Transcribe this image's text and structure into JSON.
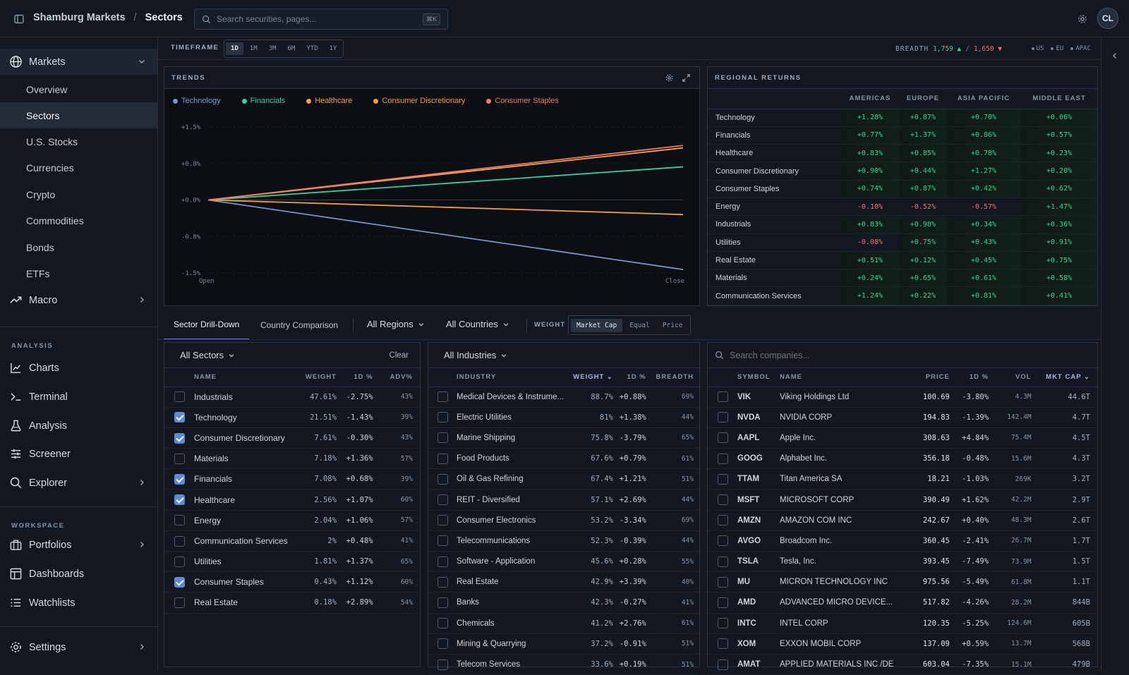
{
  "topbar": {
    "org": "Shamburg Markets",
    "sep": "/",
    "page": "Sectors",
    "search_placeholder": "Search securities, pages...",
    "shortcut": "⌘K",
    "avatar": "CL"
  },
  "sidebar": {
    "markets_label": "Markets",
    "markets_items": [
      "Overview",
      "Sectors",
      "U.S. Stocks",
      "Currencies",
      "Crypto",
      "Commodities",
      "Bonds",
      "ETFs"
    ],
    "macro_label": "Macro",
    "analysis_heading": "ANALYSIS",
    "analysis_items": [
      "Charts",
      "Terminal",
      "Analysis",
      "Screener",
      "Explorer"
    ],
    "workspace_heading": "WORKSPACE",
    "workspace_items": [
      "Portfolios",
      "Dashboards",
      "Watchlists"
    ],
    "settings_label": "Settings"
  },
  "timeframe": {
    "label": "TIMEFRAME",
    "options": [
      "1D",
      "1M",
      "3M",
      "6M",
      "YTD",
      "1Y"
    ],
    "active": "1D"
  },
  "breadth": {
    "label": "BREADTH",
    "up": "1,759 ▲",
    "sep": "/",
    "down": "1,650 ▼",
    "regions": [
      "US",
      "EU",
      "APAC"
    ]
  },
  "trends": {
    "title": "TRENDS",
    "chart_data": {
      "type": "line",
      "x": [
        "Open",
        "Close"
      ],
      "yticks": [
        "+1.5%",
        "+0.8%",
        "+0.0%",
        "-0.8%",
        "-1.5%"
      ],
      "ylim": [
        -1.5,
        1.5
      ],
      "xlabels": [
        "Open",
        "Close"
      ],
      "series": [
        {
          "name": "Technology",
          "color": "#7895c9",
          "values": [
            0,
            -1.43
          ]
        },
        {
          "name": "Financials",
          "color": "#34d399",
          "values": [
            0,
            0.68
          ]
        },
        {
          "name": "Healthcare",
          "color": "#f5a04a",
          "values": [
            0,
            1.07
          ]
        },
        {
          "name": "Consumer Discretionary",
          "color": "#f59e3c",
          "values": [
            0,
            -0.3
          ]
        },
        {
          "name": "Consumer Staples",
          "color": "#f27a6a",
          "values": [
            0,
            1.12
          ]
        }
      ]
    }
  },
  "regional": {
    "title": "REGIONAL RETURNS",
    "columns": [
      "AMERICAS",
      "EUROPE",
      "ASIA PACIFIC",
      "MIDDLE EAST"
    ],
    "rows": [
      {
        "name": "Technology",
        "v": [
          "+1.28%",
          "+0.87%",
          "+0.70%",
          "+0.06%"
        ]
      },
      {
        "name": "Financials",
        "v": [
          "+0.77%",
          "+1.37%",
          "+0.86%",
          "+0.57%"
        ]
      },
      {
        "name": "Healthcare",
        "v": [
          "+0.83%",
          "+0.85%",
          "+0.78%",
          "+0.23%"
        ]
      },
      {
        "name": "Consumer Discretionary",
        "v": [
          "+0.90%",
          "+0.44%",
          "+1.27%",
          "+0.20%"
        ]
      },
      {
        "name": "Consumer Staples",
        "v": [
          "+0.74%",
          "+0.87%",
          "+0.42%",
          "+0.62%"
        ]
      },
      {
        "name": "Energy",
        "v": [
          "-0.10%",
          "-0.52%",
          "-0.57%",
          "+1.47%"
        ]
      },
      {
        "name": "Industrials",
        "v": [
          "+0.83%",
          "+0.98%",
          "+0.34%",
          "+0.36%"
        ]
      },
      {
        "name": "Utilities",
        "v": [
          "-0.08%",
          "+0.75%",
          "+0.43%",
          "+0.91%"
        ]
      },
      {
        "name": "Real Estate",
        "v": [
          "+0.51%",
          "+0.12%",
          "+0.45%",
          "+0.75%"
        ]
      },
      {
        "name": "Materials",
        "v": [
          "+0.24%",
          "+0.65%",
          "+0.61%",
          "+0.58%"
        ]
      },
      {
        "name": "Communication Services",
        "v": [
          "+1.24%",
          "+0.22%",
          "+0.81%",
          "+0.41%"
        ]
      }
    ]
  },
  "tabs": {
    "drill": "Sector Drill-Down",
    "compare": "Country Comparison",
    "regions": "All Regions",
    "countries": "All Countries",
    "weight_label": "WEIGHT",
    "weight_options": [
      "Market Cap",
      "Equal",
      "Price"
    ]
  },
  "sectors": {
    "filter": "All Sectors",
    "clear": "Clear",
    "columns": [
      "NAME",
      "WEIGHT",
      "1D %",
      "ADV%"
    ],
    "rows": [
      {
        "name": "Industrials",
        "weight": "47.61%",
        "d1": "-2.75%",
        "adv": "43%",
        "checked": false
      },
      {
        "name": "Technology",
        "weight": "21.51%",
        "d1": "-1.43%",
        "adv": "39%",
        "checked": true
      },
      {
        "name": "Consumer Discretionary",
        "weight": "7.61%",
        "d1": "-0.30%",
        "adv": "43%",
        "checked": true
      },
      {
        "name": "Materials",
        "weight": "7.18%",
        "d1": "+1.36%",
        "adv": "57%",
        "checked": false
      },
      {
        "name": "Financials",
        "weight": "7.08%",
        "d1": "+0.68%",
        "adv": "39%",
        "checked": true
      },
      {
        "name": "Healthcare",
        "weight": "2.56%",
        "d1": "+1.07%",
        "adv": "60%",
        "checked": true
      },
      {
        "name": "Energy",
        "weight": "2.04%",
        "d1": "+1.06%",
        "adv": "57%",
        "checked": false
      },
      {
        "name": "Communication Services",
        "weight": "2%",
        "d1": "+0.48%",
        "adv": "41%",
        "checked": false
      },
      {
        "name": "Utilities",
        "weight": "1.81%",
        "d1": "+1.37%",
        "adv": "65%",
        "checked": false
      },
      {
        "name": "Consumer Staples",
        "weight": "0.43%",
        "d1": "+1.12%",
        "adv": "60%",
        "checked": true
      },
      {
        "name": "Real Estate",
        "weight": "0.18%",
        "d1": "+2.89%",
        "adv": "54%",
        "checked": false
      }
    ]
  },
  "industries": {
    "filter": "All Industries",
    "columns": [
      "INDUSTRY",
      "WEIGHT",
      "1D %",
      "BREADTH"
    ],
    "rows": [
      {
        "name": "Medical Devices & Instrume...",
        "weight": "88.7%",
        "d1": "+0.88%",
        "b": "69%"
      },
      {
        "name": "Electric Utilities",
        "weight": "81%",
        "d1": "+1.38%",
        "b": "44%"
      },
      {
        "name": "Marine Shipping",
        "weight": "75.8%",
        "d1": "-3.79%",
        "b": "65%"
      },
      {
        "name": "Food Products",
        "weight": "67.6%",
        "d1": "+0.79%",
        "b": "61%"
      },
      {
        "name": "Oil & Gas Refining",
        "weight": "67.4%",
        "d1": "+1.21%",
        "b": "51%"
      },
      {
        "name": "REIT - Diversified",
        "weight": "57.1%",
        "d1": "+2.69%",
        "b": "44%"
      },
      {
        "name": "Consumer Electronics",
        "weight": "53.2%",
        "d1": "-3.34%",
        "b": "69%"
      },
      {
        "name": "Telecommunications",
        "weight": "52.3%",
        "d1": "-0.39%",
        "b": "44%"
      },
      {
        "name": "Software - Application",
        "weight": "45.6%",
        "d1": "+0.28%",
        "b": "55%"
      },
      {
        "name": "Real Estate",
        "weight": "42.9%",
        "d1": "+3.39%",
        "b": "40%"
      },
      {
        "name": "Banks",
        "weight": "42.3%",
        "d1": "-0.27%",
        "b": "41%"
      },
      {
        "name": "Chemicals",
        "weight": "41.2%",
        "d1": "+2.76%",
        "b": "61%"
      },
      {
        "name": "Mining & Quarrying",
        "weight": "37.2%",
        "d1": "-0.91%",
        "b": "51%"
      },
      {
        "name": "Telecom Services",
        "weight": "33.6%",
        "d1": "+0.19%",
        "b": "51%"
      }
    ]
  },
  "companies": {
    "search_placeholder": "Search companies...",
    "columns": [
      "SYMBOL",
      "NAME",
      "PRICE",
      "1D %",
      "VOL",
      "MKT CAP"
    ],
    "rows": [
      {
        "sym": "VIK",
        "name": "Viking Holdings Ltd",
        "price": "100.69",
        "d1": "-3.80%",
        "vol": "4.3M",
        "cap": "44.6T"
      },
      {
        "sym": "NVDA",
        "name": "NVIDIA CORP",
        "price": "194.83",
        "d1": "-1.39%",
        "vol": "142.4M",
        "cap": "4.7T"
      },
      {
        "sym": "AAPL",
        "name": "Apple Inc.",
        "price": "308.63",
        "d1": "+4.84%",
        "vol": "75.4M",
        "cap": "4.5T"
      },
      {
        "sym": "GOOG",
        "name": "Alphabet Inc.",
        "price": "356.18",
        "d1": "-0.48%",
        "vol": "15.6M",
        "cap": "4.3T"
      },
      {
        "sym": "TTAM",
        "name": "Titan America SA",
        "price": "18.21",
        "d1": "-1.03%",
        "vol": "269K",
        "cap": "3.2T"
      },
      {
        "sym": "MSFT",
        "name": "MICROSOFT CORP",
        "price": "390.49",
        "d1": "+1.62%",
        "vol": "42.2M",
        "cap": "2.9T"
      },
      {
        "sym": "AMZN",
        "name": "AMAZON COM INC",
        "price": "242.67",
        "d1": "+0.40%",
        "vol": "48.3M",
        "cap": "2.6T"
      },
      {
        "sym": "AVGO",
        "name": "Broadcom Inc.",
        "price": "360.45",
        "d1": "-2.41%",
        "vol": "26.7M",
        "cap": "1.7T"
      },
      {
        "sym": "TSLA",
        "name": "Tesla, Inc.",
        "price": "393.45",
        "d1": "-7.49%",
        "vol": "73.9M",
        "cap": "1.5T"
      },
      {
        "sym": "MU",
        "name": "MICRON TECHNOLOGY INC",
        "price": "975.56",
        "d1": "-5.49%",
        "vol": "61.8M",
        "cap": "1.1T"
      },
      {
        "sym": "AMD",
        "name": "ADVANCED MICRO DEVICE...",
        "price": "517.82",
        "d1": "-4.26%",
        "vol": "28.2M",
        "cap": "844B"
      },
      {
        "sym": "INTC",
        "name": "INTEL CORP",
        "price": "120.35",
        "d1": "-5.25%",
        "vol": "124.6M",
        "cap": "605B"
      },
      {
        "sym": "XOM",
        "name": "EXXON MOBIL CORP",
        "price": "137.09",
        "d1": "+0.59%",
        "vol": "13.7M",
        "cap": "568B"
      },
      {
        "sym": "AMAT",
        "name": "APPLIED MATERIALS INC /DE",
        "price": "603.04",
        "d1": "-7.35%",
        "vol": "15.1M",
        "cap": "479B"
      }
    ]
  }
}
